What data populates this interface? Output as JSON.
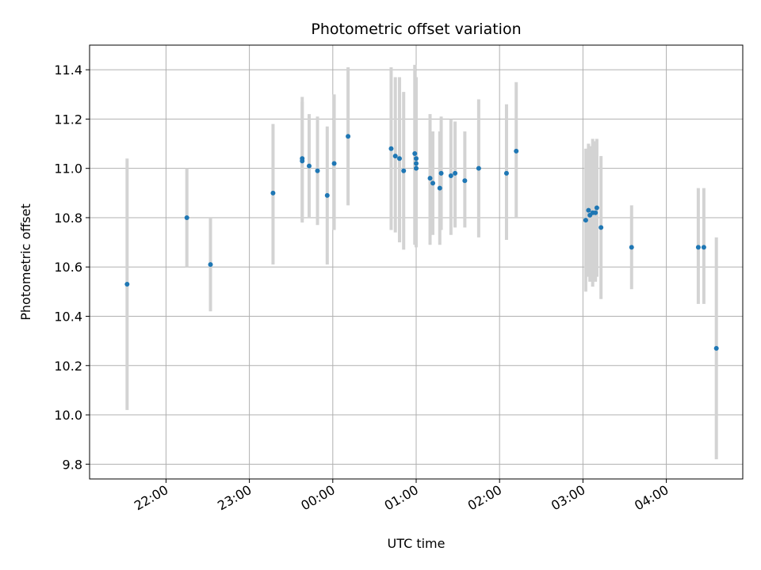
{
  "chart_data": {
    "type": "scatter",
    "title": "Photometric offset variation",
    "xlabel": "UTC time",
    "ylabel": "Photometric offset",
    "x_unit": "hours (UTC, continuing past midnight)",
    "xlim": [
      "21:05",
      "04:55"
    ],
    "ylim": [
      9.74,
      11.5
    ],
    "grid": true,
    "x_ticks": [
      "22:00",
      "23:00",
      "00:00",
      "01:00",
      "02:00",
      "03:00",
      "04:00"
    ],
    "y_ticks": [
      "9.8",
      "10.0",
      "10.2",
      "10.4",
      "10.6",
      "10.8",
      "11.0",
      "11.2",
      "11.4"
    ],
    "point_color": "#1f77b4",
    "errorbar_color": "#d3d3d3",
    "series": [
      {
        "points": [
          {
            "t": "21:32",
            "y": 10.53,
            "lo": 10.02,
            "hi": 11.04
          },
          {
            "t": "22:15",
            "y": 10.8,
            "lo": 10.6,
            "hi": 11.0
          },
          {
            "t": "22:32",
            "y": 10.61,
            "lo": 10.42,
            "hi": 10.8
          },
          {
            "t": "23:17",
            "y": 10.9,
            "lo": 10.61,
            "hi": 11.18
          },
          {
            "t": "23:38",
            "y": 11.04,
            "lo": 10.78,
            "hi": 11.29
          },
          {
            "t": "23:38",
            "y": 11.03,
            "lo": 10.79,
            "hi": 11.27
          },
          {
            "t": "23:43",
            "y": 11.01,
            "lo": 10.8,
            "hi": 11.22
          },
          {
            "t": "23:49",
            "y": 10.99,
            "lo": 10.77,
            "hi": 11.21
          },
          {
            "t": "23:56",
            "y": 10.89,
            "lo": 10.61,
            "hi": 11.17
          },
          {
            "t": "00:01",
            "y": 11.02,
            "lo": 10.75,
            "hi": 11.3
          },
          {
            "t": "00:11",
            "y": 11.13,
            "lo": 10.85,
            "hi": 11.41
          },
          {
            "t": "00:42",
            "y": 11.08,
            "lo": 10.75,
            "hi": 11.41
          },
          {
            "t": "00:45",
            "y": 11.05,
            "lo": 10.74,
            "hi": 11.37
          },
          {
            "t": "00:48",
            "y": 11.04,
            "lo": 10.7,
            "hi": 11.37
          },
          {
            "t": "00:51",
            "y": 10.99,
            "lo": 10.67,
            "hi": 11.31
          },
          {
            "t": "00:59",
            "y": 11.06,
            "lo": 10.69,
            "hi": 11.42
          },
          {
            "t": "01:00",
            "y": 11.0,
            "lo": 10.68,
            "hi": 11.33
          },
          {
            "t": "01:00",
            "y": 11.02,
            "lo": 10.7,
            "hi": 11.35
          },
          {
            "t": "01:00",
            "y": 11.04,
            "lo": 10.72,
            "hi": 11.37
          },
          {
            "t": "01:10",
            "y": 10.96,
            "lo": 10.69,
            "hi": 11.22
          },
          {
            "t": "01:12",
            "y": 10.94,
            "lo": 10.73,
            "hi": 11.15
          },
          {
            "t": "01:17",
            "y": 10.92,
            "lo": 10.69,
            "hi": 11.15
          },
          {
            "t": "01:18",
            "y": 10.98,
            "lo": 10.75,
            "hi": 11.21
          },
          {
            "t": "01:25",
            "y": 10.97,
            "lo": 10.73,
            "hi": 11.2
          },
          {
            "t": "01:28",
            "y": 10.98,
            "lo": 10.76,
            "hi": 11.19
          },
          {
            "t": "01:35",
            "y": 10.95,
            "lo": 10.76,
            "hi": 11.15
          },
          {
            "t": "01:45",
            "y": 11.0,
            "lo": 10.72,
            "hi": 11.28
          },
          {
            "t": "02:05",
            "y": 10.98,
            "lo": 10.71,
            "hi": 11.26
          },
          {
            "t": "02:12",
            "y": 11.07,
            "lo": 10.8,
            "hi": 11.35
          },
          {
            "t": "03:02",
            "y": 10.79,
            "lo": 10.5,
            "hi": 11.08
          },
          {
            "t": "03:04",
            "y": 10.83,
            "lo": 10.56,
            "hi": 11.1
          },
          {
            "t": "03:05",
            "y": 10.81,
            "lo": 10.54,
            "hi": 11.09
          },
          {
            "t": "03:07",
            "y": 10.82,
            "lo": 10.52,
            "hi": 11.12
          },
          {
            "t": "03:09",
            "y": 10.82,
            "lo": 10.54,
            "hi": 11.11
          },
          {
            "t": "03:10",
            "y": 10.84,
            "lo": 10.56,
            "hi": 11.12
          },
          {
            "t": "03:13",
            "y": 10.76,
            "lo": 10.47,
            "hi": 11.05
          },
          {
            "t": "03:35",
            "y": 10.68,
            "lo": 10.51,
            "hi": 10.85
          },
          {
            "t": "04:23",
            "y": 10.68,
            "lo": 10.45,
            "hi": 10.92
          },
          {
            "t": "04:27",
            "y": 10.68,
            "lo": 10.45,
            "hi": 10.92
          },
          {
            "t": "04:36",
            "y": 10.27,
            "lo": 9.82,
            "hi": 10.72
          }
        ]
      }
    ]
  }
}
